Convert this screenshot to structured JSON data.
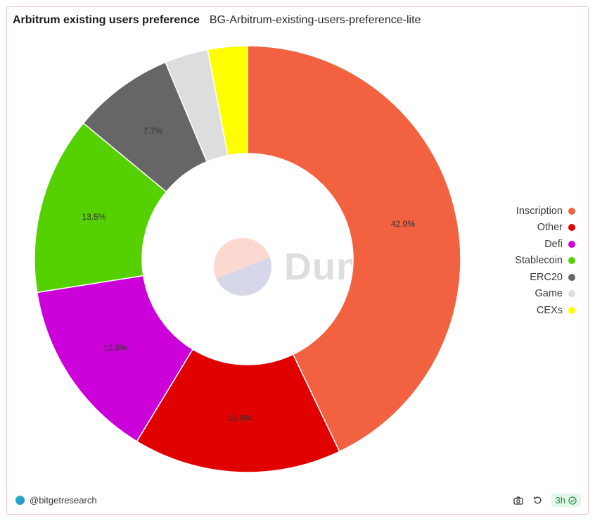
{
  "header": {
    "title": "Arbitrum existing users preference",
    "subtitle": "BG-Arbitrum-existing-users-preference-lite"
  },
  "watermark": {
    "text": "Dune"
  },
  "footer": {
    "author": "@bitgetresearch",
    "age": "3h"
  },
  "icons": {
    "camera": "camera-icon",
    "refresh": "refresh-icon",
    "check": "check-circle-icon"
  },
  "chart_data": {
    "type": "pie",
    "variant": "donut",
    "legend_position": "right",
    "categories": [
      "Inscription",
      "Other",
      "Defi",
      "Stablecoin",
      "ERC20",
      "Game",
      "CEXs"
    ],
    "values": [
      42.9,
      15.8,
      13.8,
      13.5,
      7.7,
      3.3,
      3.0
    ],
    "data_labels": [
      "42.9%",
      "15.8%",
      "13.8%",
      "13.5%",
      "7.7%",
      "",
      ""
    ],
    "colors": [
      "#f26241",
      "#e00000",
      "#cc00d8",
      "#55d000",
      "#666666",
      "#dddddd",
      "#ffff00"
    ]
  }
}
